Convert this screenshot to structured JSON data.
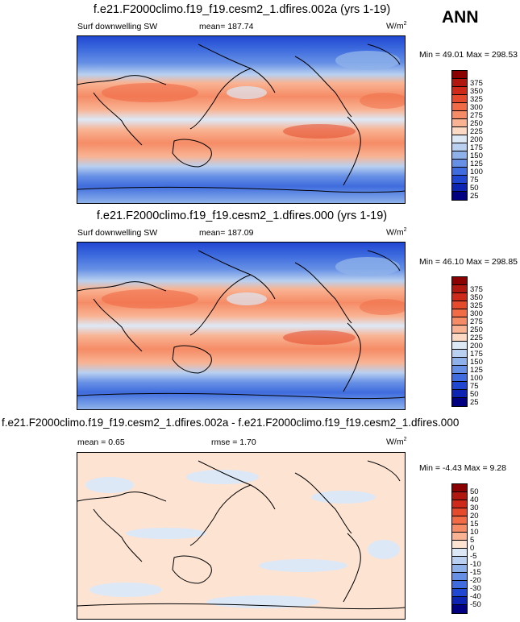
{
  "season": "ANN",
  "panels": [
    {
      "title": "f.e21.F2000climo.f19_f19.cesm2_1.dfires.002a (yrs 1-19)",
      "left_label": "Surf downwelling SW",
      "center_label": "mean= 187.74",
      "units": "W/m",
      "units_sup": "2",
      "minmax": "Min = 49.01 Max = 298.53",
      "colorbar": {
        "labels": [
          "375",
          "350",
          "325",
          "300",
          "275",
          "250",
          "225",
          "200",
          "175",
          "150",
          "125",
          "100",
          "75",
          "50",
          "25"
        ],
        "colors": [
          "#8b0000",
          "#b0170f",
          "#cf2a19",
          "#e44a2b",
          "#f06b46",
          "#f58c66",
          "#f9b393",
          "#fcd9c3",
          "#dde8f7",
          "#b9d0f0",
          "#8fb1ea",
          "#6690e5",
          "#3f6cde",
          "#1f47d2",
          "#0d24b3",
          "#000080"
        ]
      }
    },
    {
      "title": "f.e21.F2000climo.f19_f19.cesm2_1.dfires.000 (yrs 1-19)",
      "left_label": "Surf downwelling SW",
      "center_label": "mean= 187.09",
      "units": "W/m",
      "units_sup": "2",
      "minmax": "Min = 46.10 Max = 298.85",
      "colorbar": {
        "labels": [
          "375",
          "350",
          "325",
          "300",
          "275",
          "250",
          "225",
          "200",
          "175",
          "150",
          "125",
          "100",
          "75",
          "50",
          "25"
        ],
        "colors": [
          "#8b0000",
          "#b0170f",
          "#cf2a19",
          "#e44a2b",
          "#f06b46",
          "#f58c66",
          "#f9b393",
          "#fcd9c3",
          "#dde8f7",
          "#b9d0f0",
          "#8fb1ea",
          "#6690e5",
          "#3f6cde",
          "#1f47d2",
          "#0d24b3",
          "#000080"
        ]
      }
    },
    {
      "title": "f.e21.F2000climo.f19_f19.cesm2_1.dfires.002a - f.e21.F2000climo.f19_f19.cesm2_1.dfires.000",
      "left_label": "mean =   0.65",
      "center_label": "rmse =   1.70",
      "units": "W/m",
      "units_sup": "2",
      "minmax": "Min = -4.43 Max =  9.28",
      "colorbar": {
        "labels": [
          "50",
          "40",
          "30",
          "20",
          "15",
          "10",
          "5",
          "0",
          "-5",
          "-10",
          "-15",
          "-20",
          "-30",
          "-40",
          "-50"
        ],
        "colors": [
          "#8b0000",
          "#b0170f",
          "#cf2a19",
          "#e44a2b",
          "#f06b46",
          "#f58c66",
          "#f9b393",
          "#fde3d2",
          "#dde8f7",
          "#b9d0f0",
          "#8fb1ea",
          "#6690e5",
          "#3f6cde",
          "#1f47d2",
          "#0d24b3",
          "#000080"
        ]
      }
    }
  ]
}
